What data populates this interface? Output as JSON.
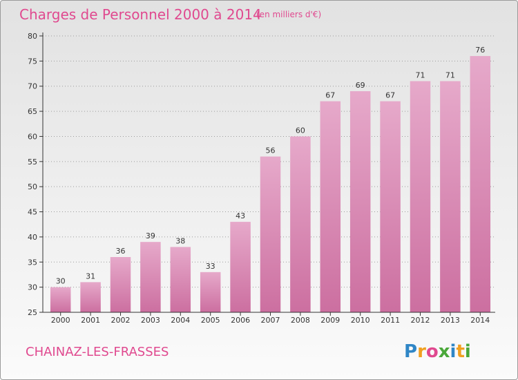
{
  "chart_data": {
    "type": "bar",
    "title": "Charges de Personnel 2000 à 2014",
    "subtitle": "(en milliers d'€)",
    "categories": [
      "2000",
      "2001",
      "2002",
      "2003",
      "2004",
      "2005",
      "2006",
      "2007",
      "2008",
      "2009",
      "2010",
      "2011",
      "2012",
      "2013",
      "2014"
    ],
    "values": [
      30,
      31,
      36,
      39,
      38,
      33,
      43,
      56,
      60,
      67,
      69,
      67,
      71,
      71,
      76
    ],
    "ylim": [
      25,
      80
    ],
    "yticks": [
      25,
      30,
      35,
      40,
      45,
      50,
      55,
      60,
      65,
      70,
      75,
      80
    ],
    "grid": true,
    "bar_color": "#cc6fa0",
    "bar_color_light": "#e6a9ca"
  },
  "footer": {
    "commune": "CHAINAZ-LES-FRASSES",
    "logo_letters": [
      "P",
      "r",
      "o",
      "x",
      "i",
      "t",
      "i"
    ],
    "logo_colors": [
      "#2f86c6",
      "#f0a020",
      "#e0498f",
      "#4aa83a",
      "#2f86c6",
      "#f0a020",
      "#4aa83a"
    ]
  }
}
